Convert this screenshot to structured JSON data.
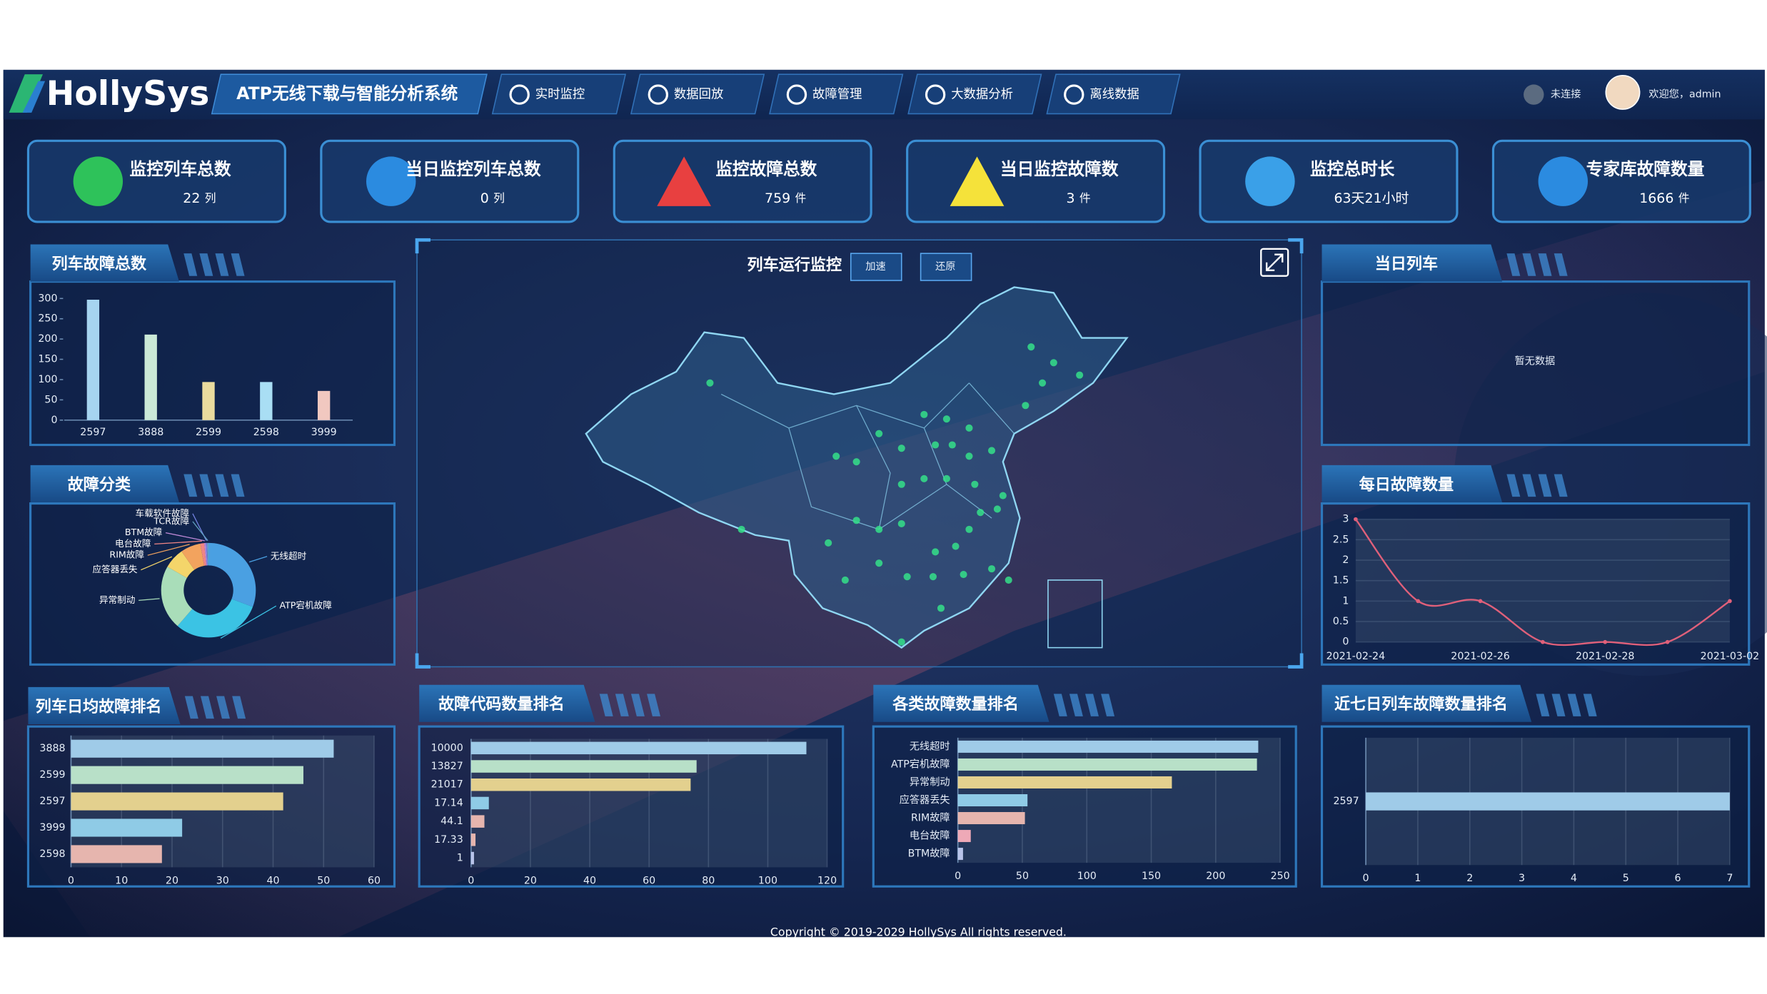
{
  "header": {
    "logo": "HollySys",
    "system": "ATP无线下载与智能分析系统",
    "nav": [
      "实时监控",
      "数据回放",
      "故障管理",
      "大数据分析",
      "离线数据"
    ],
    "status": "未连接",
    "welcome": "欢迎您，admin"
  },
  "stats": [
    {
      "label": "监控列车总数",
      "value": 22,
      "unit": "列"
    },
    {
      "label": "当日监控列车总数",
      "value": 0,
      "unit": "列"
    },
    {
      "label": "监控故障总数",
      "value": 759,
      "unit": "件"
    },
    {
      "label": "当日监控故障数",
      "value": 3,
      "unit": "件"
    },
    {
      "label": "监控总时长",
      "value": "63天21小时"
    },
    {
      "label": "专家库故障数量",
      "value": 1666,
      "unit": "件"
    }
  ],
  "map": {
    "title": "列车运行监控",
    "buttons": [
      "加速",
      "还原"
    ]
  },
  "today_trains": {
    "title": "当日列车",
    "empty": "暂无数据"
  },
  "chart_data": [
    {
      "type": "bar",
      "title": "列车故障总数",
      "categories": [
        "2597",
        "3888",
        "2599",
        "2598",
        "3999"
      ],
      "values": [
        297,
        211,
        94,
        94,
        72
      ],
      "colors": [
        "#a6d4f0",
        "#cbe9d7",
        "#eadb9e",
        "#a9def4",
        "#f1c8c0"
      ],
      "ylim": [
        0,
        300
      ],
      "yticks": [
        0,
        50,
        100,
        150,
        200,
        250,
        300
      ]
    },
    {
      "type": "pie",
      "title": "故障分类",
      "categories": [
        "无线超时",
        "ATP宕机故障",
        "异常制动",
        "应答器丢失",
        "RIM故障",
        "电台故障",
        "BTM故障",
        "车载软件故障",
        "TCR故障"
      ],
      "values": [
        233,
        232,
        166,
        54,
        52,
        10,
        4,
        4,
        3
      ],
      "colors": [
        "#4aa0e2",
        "#3bc3e4",
        "#a9ddb9",
        "#f4d56a",
        "#f2a35e",
        "#ef8585",
        "#c18ad8",
        "#7383e2",
        "#62a3c3"
      ]
    },
    {
      "type": "line",
      "title": "每日故障数量",
      "categories": [
        "2021-02-24",
        null,
        "2021-02-26",
        null,
        "2021-02-28",
        null,
        "2021-03-02"
      ],
      "series": [
        {
          "color": "#e0607a",
          "values": [
            3,
            1,
            1,
            0,
            0,
            0,
            1
          ]
        }
      ],
      "ylim": [
        0,
        3
      ],
      "yticks": [
        0,
        0.5,
        1,
        1.5,
        2,
        2.5,
        3
      ]
    },
    {
      "type": "barh",
      "title": "列车日均故障排名",
      "categories": [
        "3888",
        "2599",
        "2597",
        "3999",
        "2598"
      ],
      "values": [
        52,
        46,
        42,
        22,
        18
      ],
      "colors": [
        "#9fcbe8",
        "#b8e0c8",
        "#e3d08e",
        "#8fcbe6",
        "#e6b5ae"
      ],
      "xlim": [
        0,
        60
      ],
      "xticks": [
        0,
        10,
        20,
        30,
        40,
        50,
        60
      ]
    },
    {
      "type": "barh",
      "title": "故障代码数量排名",
      "categories": [
        "10000",
        "13827",
        "21017",
        "17.14",
        "44.1",
        "17.33",
        "1"
      ],
      "values": [
        113,
        76,
        74,
        6,
        4.5,
        1.5,
        1
      ],
      "colors": [
        "#9fcbe8",
        "#b8e0c8",
        "#e3d08e",
        "#8fcbe6",
        "#e6b5ae",
        "#e6b5ae",
        "#b9c4ea"
      ],
      "xlim": [
        0,
        120
      ],
      "xticks": [
        0,
        20,
        40,
        60,
        80,
        100,
        120
      ]
    },
    {
      "type": "barh",
      "title": "各类故障数量排名",
      "categories": [
        "无线超时",
        "ATP宕机故障",
        "异常制动",
        "应答器丢失",
        "RIM故障",
        "电台故障",
        "BTM故障"
      ],
      "values": [
        233,
        232,
        166,
        54,
        52,
        10,
        4
      ],
      "colors": [
        "#9fcbe8",
        "#b8e0c8",
        "#e3d08e",
        "#8fcbe6",
        "#e6b5ae",
        "#eea9b7",
        "#b9c4ea"
      ],
      "xlim": [
        0,
        250
      ],
      "xticks": [
        0,
        50,
        100,
        150,
        200,
        250
      ]
    },
    {
      "type": "barh",
      "title": "近七日列车故障数量排名",
      "categories": [
        "2597"
      ],
      "values": [
        7
      ],
      "colors": [
        "#9fcbe8"
      ],
      "xlim": [
        0,
        7
      ],
      "xticks": [
        0,
        1,
        2,
        3,
        4,
        5,
        6,
        7
      ]
    }
  ],
  "footer": "Copyright © 2019-2029 HollySys All rights reserved."
}
